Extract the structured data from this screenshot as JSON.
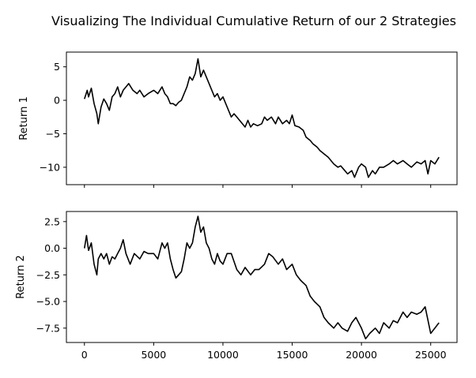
{
  "figure_title": "Visualizing The Individual Cumulative Return of our 2 Strategies",
  "chart_data": [
    {
      "type": "line",
      "title": "",
      "xlabel": "",
      "ylabel": "Return 1",
      "xlim": [
        -1300,
        26900
      ],
      "ylim": [
        -12.6,
        7.2
      ],
      "x_ticks": [
        0,
        5000,
        10000,
        15000,
        20000,
        25000
      ],
      "x_tick_labels_shown": false,
      "y_ticks": [
        5,
        0,
        -5,
        -10
      ],
      "y_tick_labels": [
        "5",
        "0",
        "−5",
        "−10"
      ],
      "grid": false,
      "color": "#000000",
      "series": [
        {
          "x": [
            0,
            200,
            300,
            500,
            700,
            900,
            1000,
            1200,
            1400,
            1600,
            1800,
            2000,
            2200,
            2400,
            2600,
            2800,
            3000,
            3200,
            3500,
            3800,
            4000,
            4300,
            4600,
            5000,
            5300,
            5600,
            5800,
            6000,
            6200,
            6400,
            6600,
            6800,
            7000,
            7200,
            7400,
            7600,
            7800,
            8000,
            8200,
            8400,
            8600,
            8800,
            9000,
            9200,
            9400,
            9600,
            9800,
            10000,
            10200,
            10400,
            10600,
            10800,
            11000,
            11200,
            11400,
            11600,
            11800,
            12000,
            12200,
            12500,
            12800,
            13000,
            13200,
            13500,
            13800,
            14000,
            14300,
            14600,
            14800,
            15000,
            15200,
            15500,
            15800,
            16000,
            16300,
            16500,
            16800,
            17000,
            17300,
            17600,
            18000,
            18300,
            18500,
            18800,
            19000,
            19300,
            19500,
            19800,
            20000,
            20300,
            20500,
            20800,
            21000,
            21300,
            21600,
            22000,
            22300,
            22600,
            23000,
            23300,
            23600,
            24000,
            24300,
            24600,
            24800,
            25000,
            25300,
            25600
          ],
          "y": [
            0.2,
            1.5,
            0.5,
            1.8,
            -0.5,
            -2.0,
            -3.5,
            -1.0,
            0.2,
            -0.5,
            -1.5,
            0.5,
            1.0,
            2.0,
            0.5,
            1.5,
            2.0,
            2.5,
            1.5,
            1.0,
            1.5,
            0.5,
            1.0,
            1.5,
            1.0,
            2.0,
            1.0,
            0.5,
            -0.5,
            -0.5,
            -0.8,
            -0.3,
            0.0,
            1.0,
            2.0,
            3.5,
            3.0,
            4.0,
            6.2,
            3.5,
            4.5,
            3.5,
            2.5,
            1.5,
            0.5,
            1.0,
            0.0,
            0.5,
            -0.5,
            -1.5,
            -2.5,
            -2.0,
            -2.5,
            -3.0,
            -3.5,
            -4.0,
            -3.0,
            -4.0,
            -3.5,
            -3.8,
            -3.5,
            -2.5,
            -3.0,
            -2.5,
            -3.5,
            -2.5,
            -3.5,
            -3.0,
            -3.5,
            -2.2,
            -3.8,
            -4.0,
            -4.5,
            -5.5,
            -6.0,
            -6.5,
            -7.0,
            -7.5,
            -8.0,
            -8.5,
            -9.5,
            -10.0,
            -9.8,
            -10.5,
            -11.0,
            -10.5,
            -11.5,
            -10.0,
            -9.5,
            -10.0,
            -11.5,
            -10.5,
            -11.0,
            -10.0,
            -10.0,
            -9.5,
            -9.0,
            -9.5,
            -9.0,
            -9.5,
            -10.0,
            -9.2,
            -9.5,
            -9.0,
            -11.0,
            -9.0,
            -9.5,
            -8.5
          ]
        }
      ]
    },
    {
      "type": "line",
      "title": "",
      "xlabel": "",
      "ylabel": "Return 2",
      "xlim": [
        -1300,
        26900
      ],
      "ylim": [
        -8.85,
        3.45
      ],
      "x_ticks": [
        0,
        5000,
        10000,
        15000,
        20000,
        25000
      ],
      "x_tick_labels": [
        "0",
        "5000",
        "10000",
        "15000",
        "20000",
        "25000"
      ],
      "x_tick_labels_shown": true,
      "y_ticks": [
        2.5,
        0.0,
        -2.5,
        -5.0,
        -7.5
      ],
      "y_tick_labels": [
        "2.5",
        "0.0",
        "−2.5",
        "−5.0",
        "−7.5"
      ],
      "grid": false,
      "color": "#000000",
      "series": [
        {
          "x": [
            0,
            150,
            300,
            500,
            700,
            900,
            1000,
            1200,
            1400,
            1600,
            1800,
            2000,
            2200,
            2400,
            2600,
            2800,
            3000,
            3300,
            3600,
            4000,
            4300,
            4600,
            5000,
            5300,
            5600,
            5800,
            6000,
            6200,
            6400,
            6600,
            6800,
            7000,
            7200,
            7400,
            7600,
            7800,
            8000,
            8200,
            8400,
            8600,
            8800,
            9000,
            9200,
            9400,
            9600,
            9800,
            10000,
            10300,
            10600,
            11000,
            11300,
            11600,
            12000,
            12300,
            12600,
            13000,
            13300,
            13600,
            14000,
            14300,
            14600,
            15000,
            15300,
            15600,
            16000,
            16300,
            16600,
            17000,
            17300,
            17600,
            18000,
            18300,
            18600,
            19000,
            19300,
            19600,
            20000,
            20300,
            20600,
            21000,
            21300,
            21600,
            22000,
            22300,
            22600,
            23000,
            23300,
            23600,
            24000,
            24300,
            24600,
            25000,
            25300,
            25600
          ],
          "y": [
            0.0,
            1.2,
            -0.2,
            0.5,
            -1.5,
            -2.5,
            -1.0,
            -0.5,
            -1.0,
            -0.5,
            -1.5,
            -0.8,
            -1.0,
            -0.5,
            0.0,
            0.8,
            -0.5,
            -1.5,
            -0.5,
            -1.0,
            -0.3,
            -0.5,
            -0.5,
            -1.0,
            0.5,
            0.0,
            0.5,
            -1.0,
            -2.0,
            -2.8,
            -2.5,
            -2.2,
            -1.0,
            0.5,
            0.0,
            0.5,
            2.0,
            3.0,
            1.5,
            2.0,
            0.5,
            0.0,
            -1.0,
            -1.5,
            -0.5,
            -1.2,
            -1.5,
            -0.5,
            -0.5,
            -2.0,
            -2.5,
            -1.8,
            -2.5,
            -2.0,
            -2.0,
            -1.5,
            -0.5,
            -0.8,
            -1.5,
            -1.0,
            -2.0,
            -1.5,
            -2.5,
            -3.0,
            -3.5,
            -4.5,
            -5.0,
            -5.5,
            -6.5,
            -7.0,
            -7.5,
            -7.0,
            -7.5,
            -7.8,
            -7.0,
            -6.5,
            -7.5,
            -8.5,
            -8.0,
            -7.5,
            -8.0,
            -7.0,
            -7.5,
            -6.8,
            -7.0,
            -6.0,
            -6.5,
            -6.0,
            -6.2,
            -6.0,
            -5.5,
            -8.0,
            -7.5,
            -7.0
          ]
        }
      ]
    }
  ]
}
